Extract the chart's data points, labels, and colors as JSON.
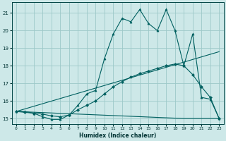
{
  "xlabel": "Humidex (Indice chaleur)",
  "xlim": [
    -0.5,
    23.5
  ],
  "ylim": [
    14.7,
    21.6
  ],
  "yticks": [
    15,
    16,
    17,
    18,
    19,
    20,
    21
  ],
  "xticks": [
    0,
    1,
    2,
    3,
    4,
    5,
    6,
    7,
    8,
    9,
    10,
    11,
    12,
    13,
    14,
    15,
    16,
    17,
    18,
    19,
    20,
    21,
    22,
    23
  ],
  "bg_color": "#cde8e8",
  "grid_color": "#9dc8c8",
  "line_color": "#006060",
  "series1_x": [
    0,
    1,
    2,
    3,
    4,
    5,
    6,
    7,
    8,
    9,
    10,
    11,
    12,
    13,
    14,
    15,
    16,
    17,
    18,
    19,
    20,
    21,
    22,
    23
  ],
  "series1_y": [
    15.4,
    15.4,
    15.3,
    15.1,
    14.95,
    14.95,
    15.2,
    15.75,
    16.4,
    16.6,
    18.4,
    19.8,
    20.7,
    20.5,
    21.2,
    20.4,
    20.0,
    21.2,
    20.0,
    18.0,
    19.8,
    16.2,
    16.1,
    15.0
  ],
  "series2_x": [
    0,
    1,
    2,
    3,
    4,
    5,
    6,
    7,
    8,
    9,
    10,
    11,
    12,
    13,
    14,
    15,
    16,
    17,
    18,
    19,
    20,
    21,
    22,
    23
  ],
  "series2_y": [
    15.4,
    15.35,
    15.3,
    15.25,
    15.15,
    15.1,
    15.2,
    15.5,
    15.75,
    16.0,
    16.4,
    16.8,
    17.1,
    17.35,
    17.55,
    17.7,
    17.85,
    18.0,
    18.1,
    18.0,
    17.5,
    16.8,
    16.2,
    15.0
  ],
  "series3_x": [
    0,
    23
  ],
  "series3_y": [
    15.4,
    18.8
  ],
  "series4_x": [
    0,
    19,
    23
  ],
  "series4_y": [
    15.4,
    15.0,
    15.0
  ],
  "marker1": "^",
  "marker2": "D",
  "markersize1": 2.2,
  "markersize2": 2.0
}
